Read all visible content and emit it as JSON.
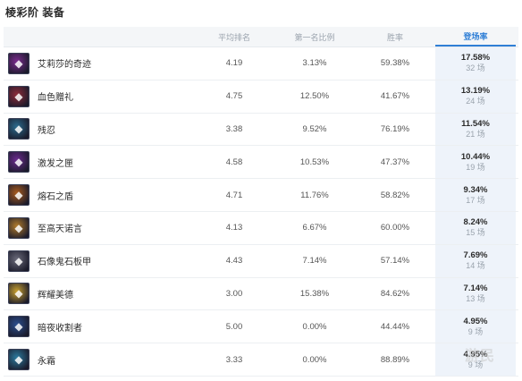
{
  "title": "棱彩阶 装备",
  "headers": {
    "avg_rank": "平均排名",
    "first_rate": "第一名比例",
    "win_rate": "胜率",
    "pick_rate": "登场率"
  },
  "rows": [
    {
      "name": "艾莉莎的奇迹",
      "avg": "4.19",
      "first": "3.13%",
      "win": "59.38%",
      "rate": "17.58%",
      "games": "32 场",
      "icon": "gem-icon",
      "color": "#7b2b8e"
    },
    {
      "name": "血色赠礼",
      "avg": "4.75",
      "first": "12.50%",
      "win": "41.67%",
      "rate": "13.19%",
      "games": "24 场",
      "icon": "blood-gift-icon",
      "color": "#8e2b3a"
    },
    {
      "name": "残忍",
      "avg": "3.38",
      "first": "9.52%",
      "win": "76.19%",
      "rate": "11.54%",
      "games": "21 场",
      "icon": "cruelty-icon",
      "color": "#2b6b8e"
    },
    {
      "name": "激发之匣",
      "avg": "4.58",
      "first": "10.53%",
      "win": "47.37%",
      "rate": "10.44%",
      "games": "19 场",
      "icon": "box-icon",
      "color": "#6b2b8e"
    },
    {
      "name": "熔石之盾",
      "avg": "4.71",
      "first": "11.76%",
      "win": "58.82%",
      "rate": "9.34%",
      "games": "17 场",
      "icon": "shield-icon",
      "color": "#a85a1e"
    },
    {
      "name": "至高天诺言",
      "avg": "4.13",
      "first": "6.67%",
      "win": "60.00%",
      "rate": "8.24%",
      "games": "15 场",
      "icon": "promise-icon",
      "color": "#b07a2a"
    },
    {
      "name": "石像鬼石板甲",
      "avg": "4.43",
      "first": "7.14%",
      "win": "57.14%",
      "rate": "7.69%",
      "games": "14 场",
      "icon": "armor-icon",
      "color": "#6a6a7a"
    },
    {
      "name": "辉耀美德",
      "avg": "3.00",
      "first": "15.38%",
      "win": "84.62%",
      "rate": "7.14%",
      "games": "13 场",
      "icon": "virtue-icon",
      "color": "#c8a030"
    },
    {
      "name": "暗夜收割者",
      "avg": "5.00",
      "first": "0.00%",
      "win": "44.44%",
      "rate": "4.95%",
      "games": "9 场",
      "icon": "reaper-icon",
      "color": "#2b4e8e"
    },
    {
      "name": "永霜",
      "avg": "3.33",
      "first": "0.00%",
      "win": "88.89%",
      "rate": "4.95%",
      "games": "9 场",
      "icon": "frost-icon",
      "color": "#2b7a9e"
    }
  ],
  "watermark": "游民"
}
